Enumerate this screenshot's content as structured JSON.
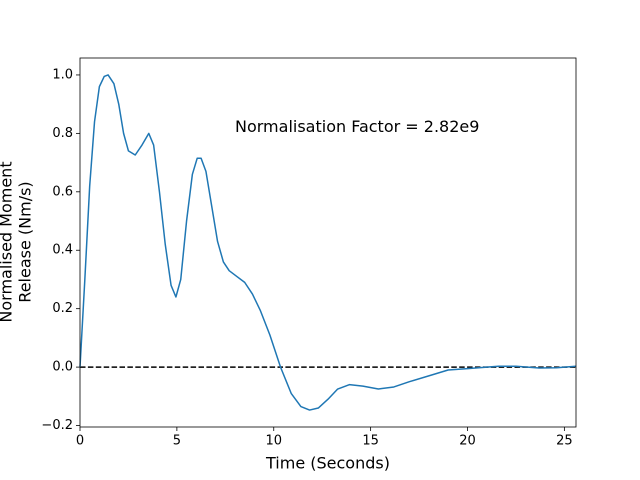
{
  "chart_data": {
    "type": "line",
    "xlabel": "Time (Seconds)",
    "ylabel": [
      "Normalised Moment",
      "Release (Nm/s)"
    ],
    "annotation": {
      "text": "Normalisation Factor = 2.82e9",
      "x": 8.0,
      "y": 0.82
    },
    "hline": {
      "y": 0,
      "color": "#000000",
      "style": "dashed"
    },
    "x": [
      0,
      0.25,
      0.5,
      0.75,
      1,
      1.25,
      1.45,
      1.75,
      2,
      2.25,
      2.5,
      2.85,
      3.2,
      3.55,
      3.8,
      4.1,
      4.4,
      4.7,
      4.95,
      5.2,
      5.5,
      5.8,
      6.05,
      6.25,
      6.5,
      6.8,
      7.1,
      7.4,
      7.7,
      8.1,
      8.5,
      8.9,
      9.3,
      9.8,
      10.35,
      10.9,
      11.4,
      11.85,
      12.3,
      12.8,
      13.3,
      13.9,
      14.6,
      15.4,
      16.2,
      17,
      18,
      19,
      20,
      21,
      21.6,
      22.5,
      23.7,
      24.6,
      25.6
    ],
    "series": [
      {
        "color": "#1f77b4",
        "values": [
          0,
          0.3,
          0.62,
          0.84,
          0.96,
          0.995,
          1.0,
          0.97,
          0.9,
          0.8,
          0.74,
          0.726,
          0.76,
          0.8,
          0.76,
          0.6,
          0.42,
          0.28,
          0.24,
          0.3,
          0.5,
          0.66,
          0.715,
          0.715,
          0.67,
          0.55,
          0.43,
          0.36,
          0.33,
          0.31,
          0.29,
          0.25,
          0.195,
          0.11,
          0.0,
          -0.09,
          -0.135,
          -0.147,
          -0.14,
          -0.11,
          -0.075,
          -0.06,
          -0.065,
          -0.075,
          -0.068,
          -0.05,
          -0.03,
          -0.01,
          -0.005,
          0.0,
          0.003,
          0.003,
          -0.003,
          -0.002,
          0.003
        ]
      }
    ],
    "xlim": [
      0,
      25.6
    ],
    "ylim": [
      -0.205,
      1.058
    ],
    "xticks": [
      0,
      5,
      10,
      15,
      20,
      25
    ],
    "yticks": [
      {
        "value": -0.2,
        "label": "−0.2"
      },
      {
        "value": 0,
        "label": "0.0"
      },
      0.2,
      0.4,
      0.6,
      0.8,
      {
        "value": 1,
        "label": "1.0"
      }
    ],
    "grid": false
  }
}
